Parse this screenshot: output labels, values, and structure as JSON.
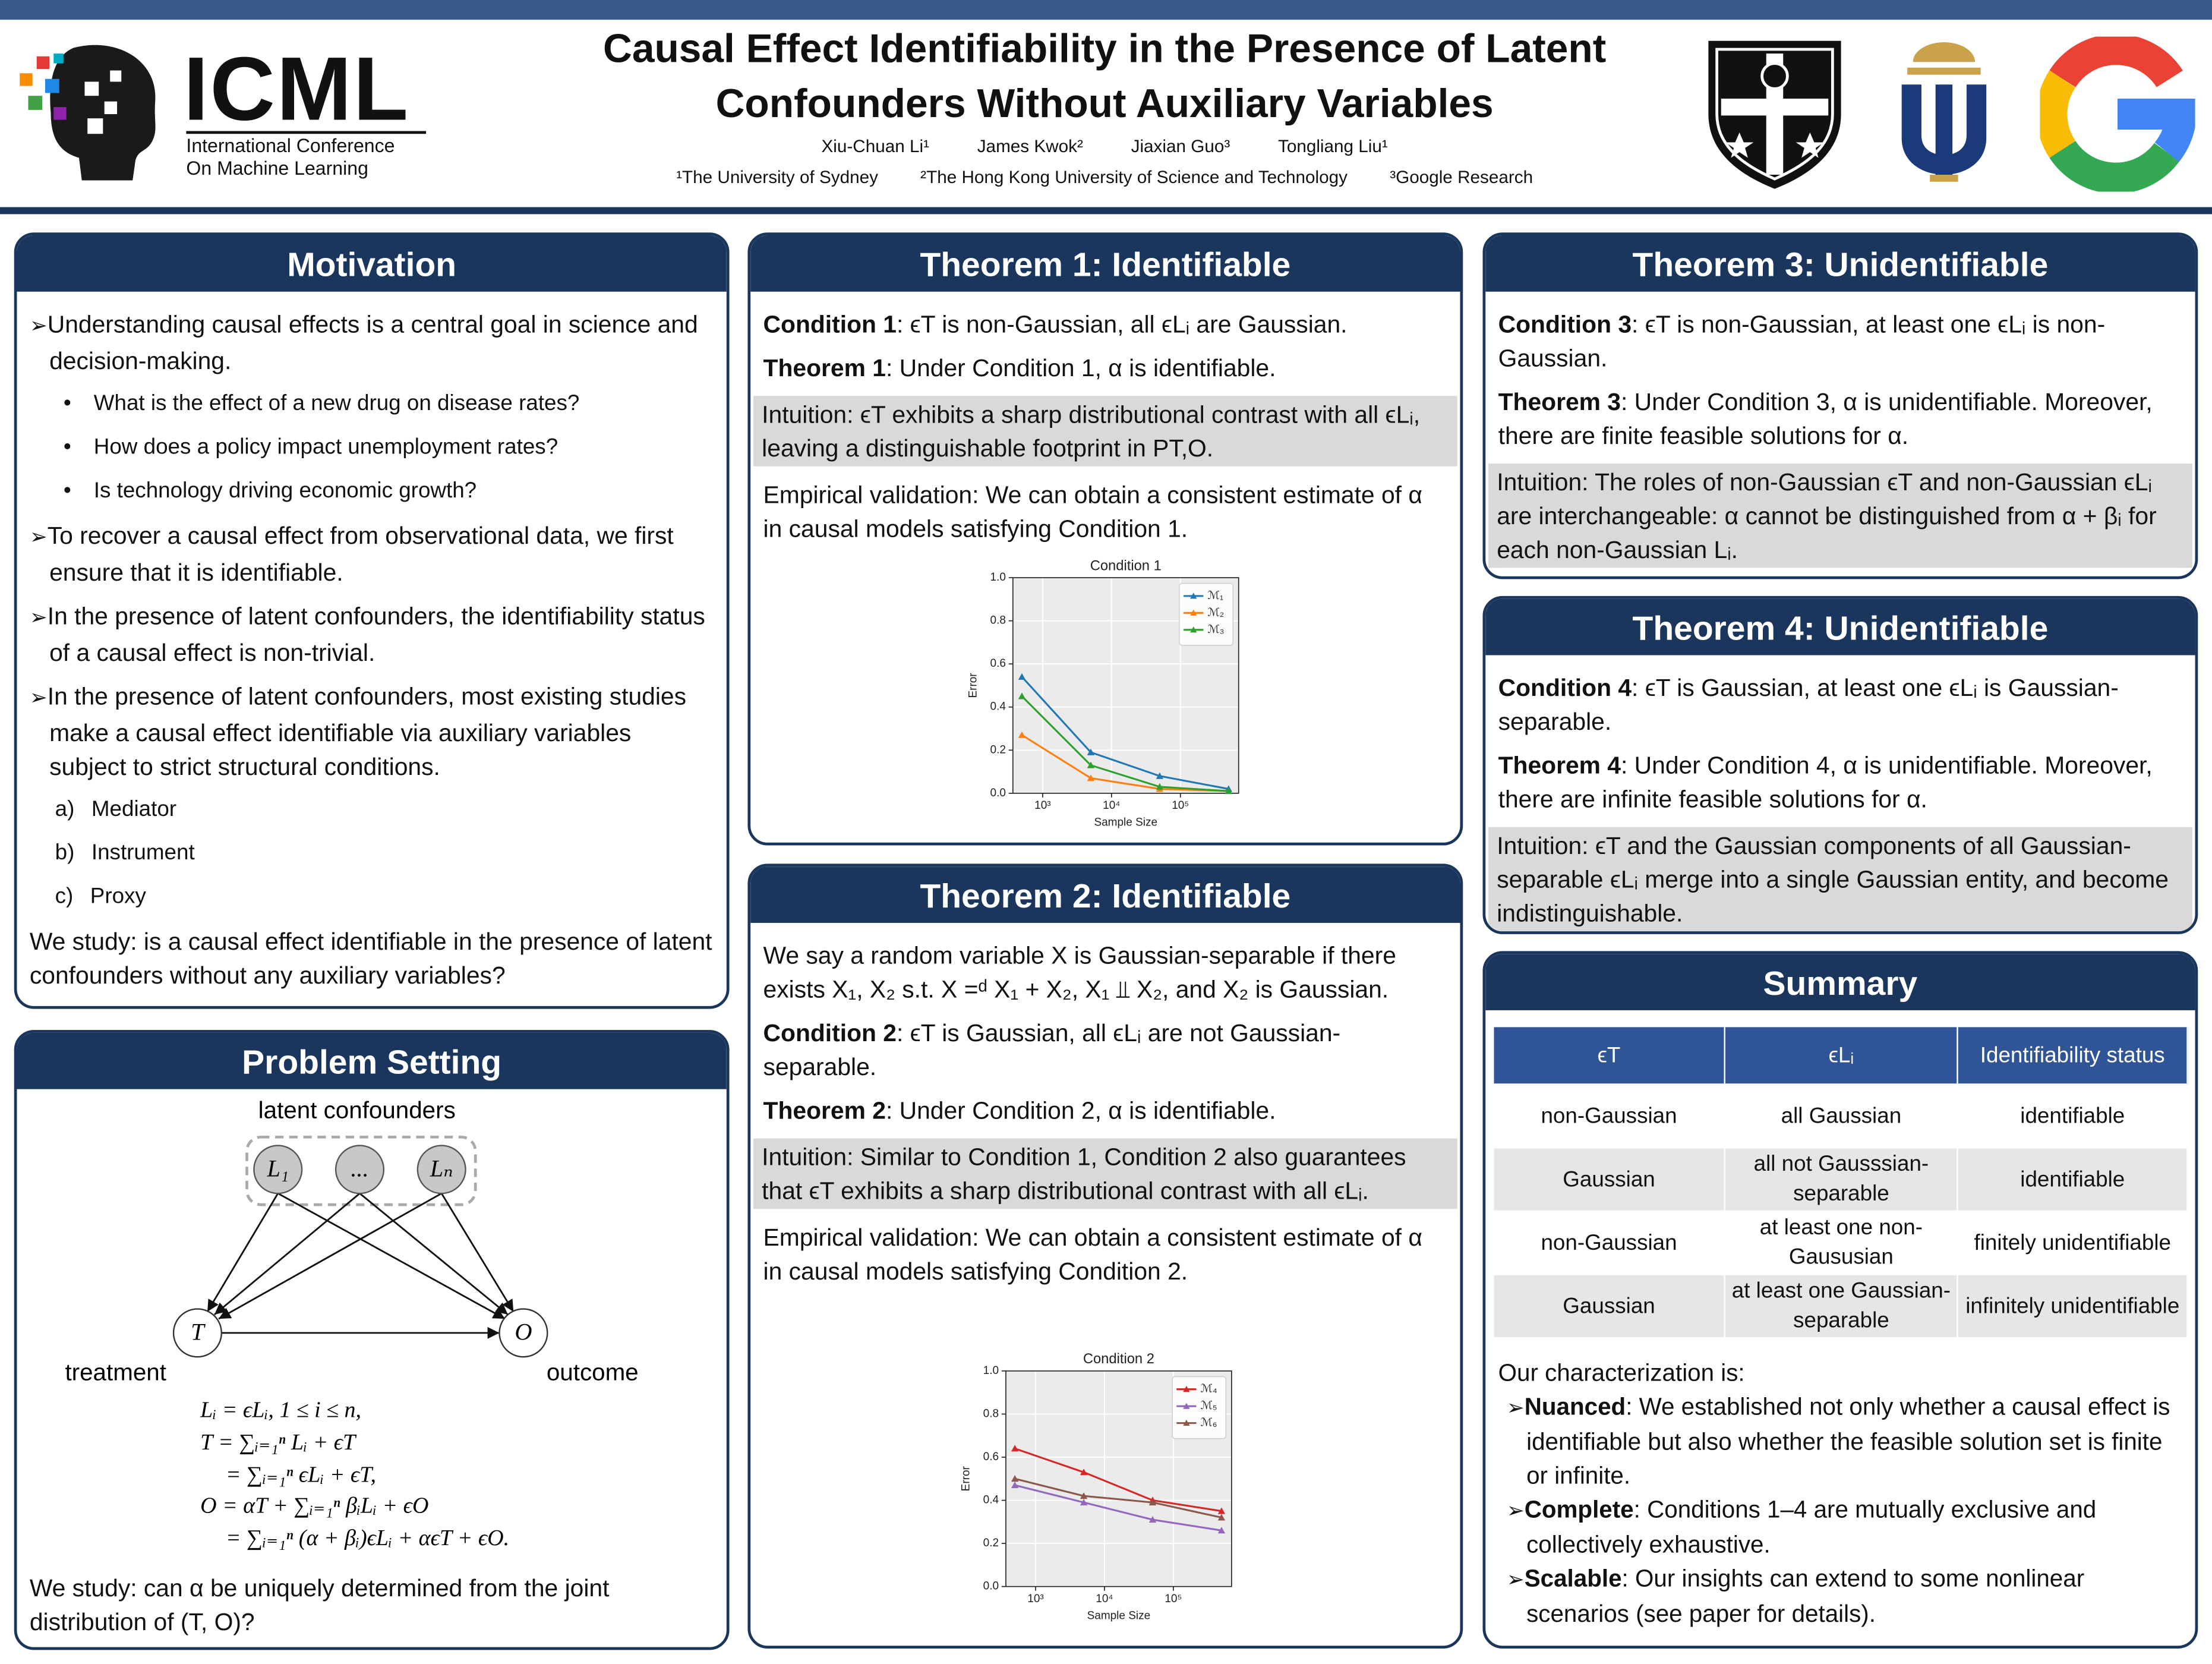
{
  "header": {
    "title": "Causal Effect Identifiability in the Presence of Latent Confounders Without Auxiliary Variables",
    "authors": [
      "Xiu-Chuan Li¹",
      "James Kwok²",
      "Jiaxian Guo³",
      "Tongliang Liu¹"
    ],
    "affiliations": [
      "¹The University of Sydney",
      "²The Hong Kong University of Science and Technology",
      "³Google Research"
    ],
    "conference": {
      "name": "ICML",
      "line1": "International Conference",
      "line2": "On Machine Learning"
    }
  },
  "motivation": {
    "title": "Motivation",
    "p1": "Understanding causal effects is a central goal in science and decision-making.",
    "questions": [
      "What is the effect of a new drug on disease rates?",
      "How does a policy impact unemployment rates?",
      "Is technology driving economic growth?"
    ],
    "p2": "To recover a causal effect from observational data, we first ensure that it is identifiable.",
    "p3": "In the presence of latent confounders, the identifiability status of a causal effect is non-trivial.",
    "p4": "In the presence of latent confounders, most existing studies make a causal effect identifiable via auxiliary variables subject to strict structural conditions.",
    "auxiliary": [
      {
        "marker": "a)",
        "text": "Mediator"
      },
      {
        "marker": "b)",
        "text": "Instrument"
      },
      {
        "marker": "c)",
        "text": "Proxy"
      }
    ],
    "study": "We study: is a causal effect identifiable in the presence of latent confounders without any auxiliary variables?"
  },
  "problem": {
    "title": "Problem Setting",
    "latent_label": "latent confounders",
    "treatment_label": "treatment",
    "outcome_label": "outcome",
    "nodes": {
      "l1": "L₁",
      "dots": "...",
      "ln": "Lₙ",
      "t": "T",
      "o": "O"
    },
    "equations": [
      "Lᵢ = ϵLᵢ,  1 ≤ i ≤ n,",
      "T = ∑ᵢ₌₁ⁿ Lᵢ + ϵT",
      "= ∑ᵢ₌₁ⁿ ϵLᵢ + ϵT,",
      "O = αT + ∑ᵢ₌₁ⁿ βᵢLᵢ + ϵO",
      "= ∑ᵢ₌₁ⁿ (α + βᵢ)ϵLᵢ + αϵT + ϵO."
    ],
    "study": "We study: can α be uniquely determined from the joint distribution of (T, O)?"
  },
  "theorem1": {
    "title": "Theorem 1: Identifiable",
    "condition": {
      "lead": "Condition 1",
      "text": ": ϵT is non-Gaussian, all ϵLᵢ are Gaussian."
    },
    "theorem": {
      "lead": "Theorem 1",
      "text": ": Under Condition 1, α is identifiable."
    },
    "intuition": "Intuition: ϵT exhibits a sharp distributional contrast with all ϵLᵢ, leaving a distinguishable footprint in PT,O.",
    "empirical": "Empirical validation: We can obtain a consistent estimate of α in causal models satisfying Condition 1."
  },
  "theorem2": {
    "title": "Theorem 2: Identifiable",
    "definition": "We say a random variable X is Gaussian-separable if there exists X₁, X₂ s.t. X =ᵈ X₁ + X₂, X₁ ⫫ X₂, and X₂ is Gaussian.",
    "condition": {
      "lead": "Condition 2",
      "text": ": ϵT is Gaussian, all ϵLᵢ are not Gaussian-separable."
    },
    "theorem": {
      "lead": "Theorem 2",
      "text": ": Under Condition 2, α is identifiable."
    },
    "intuition": "Intuition: Similar to Condition 1, Condition 2 also guarantees that ϵT exhibits a sharp distributional contrast with all ϵLᵢ.",
    "empirical": "Empirical validation: We can obtain a consistent estimate of α in causal models satisfying Condition 2."
  },
  "theorem3": {
    "title": "Theorem 3: Unidentifiable",
    "condition": {
      "lead": "Condition 3",
      "text": ": ϵT is non-Gaussian, at least one ϵLᵢ is non-Gaussian."
    },
    "theorem": {
      "lead": "Theorem 3",
      "text": ": Under Condition 3, α is unidentifiable. Moreover, there are finite feasible solutions for α."
    },
    "intuition": "Intuition: The roles of non-Gaussian ϵT and non-Gaussian ϵLᵢ are interchangeable: α cannot be distinguished from α + βᵢ for each non-Gaussian Lᵢ."
  },
  "theorem4": {
    "title": "Theorem 4: Unidentifiable",
    "condition": {
      "lead": "Condition 4",
      "text": ": ϵT is Gaussian, at least one ϵLᵢ is Gaussian-separable."
    },
    "theorem": {
      "lead": "Theorem 4",
      "text": ": Under Condition 4, α is unidentifiable. Moreover, there are infinite feasible solutions for α."
    },
    "intuition": "Intuition: ϵT and the Gaussian components of all Gaussian-separable ϵLᵢ merge into a single Gaussian entity, and become indistinguishable."
  },
  "summary": {
    "title": "Summary",
    "table": {
      "header": [
        "ϵT",
        "ϵLᵢ",
        "Identifiability status"
      ],
      "rows": [
        [
          "non-Gaussian",
          "all Gaussian",
          "identifiable"
        ],
        [
          "Gaussian",
          "all not Gausssian-separable",
          "identifiable"
        ],
        [
          "non-Gaussian",
          "at least one non-Gaususian",
          "finitely unidentifiable"
        ],
        [
          "Gaussian",
          "at least one Gaussian-separable",
          "infinitely unidentifiable"
        ]
      ]
    },
    "intro": "Our characterization is:",
    "points": [
      {
        "lead": "Nuanced",
        "text": ": We established not only whether a causal effect is identifiable but also whether the feasible solution set is finite or infinite."
      },
      {
        "lead": "Complete",
        "text": ": Conditions 1–4 are mutually exclusive and collectively exhaustive."
      },
      {
        "lead": "Scalable",
        "text": ": Our insights can extend to some nonlinear scenarios (see paper for details)."
      }
    ]
  },
  "chart_data": [
    {
      "type": "line",
      "title": "Condition 1",
      "x_label": "Sample Size",
      "y_label": "Error",
      "x": [
        500,
        5000,
        50000,
        500000
      ],
      "xscale": "log",
      "xlim": [
        370,
        700000
      ],
      "xticks": [
        {
          "value": 1000,
          "label": "10³"
        },
        {
          "value": 10000,
          "label": "10⁴"
        },
        {
          "value": 100000,
          "label": "10⁵"
        }
      ],
      "ylim": [
        0,
        1
      ],
      "yticks": [
        {
          "value": 0,
          "label": "0.0"
        },
        {
          "value": 0.2,
          "label": "0.2"
        },
        {
          "value": 0.4,
          "label": "0.4"
        },
        {
          "value": 0.6,
          "label": "0.6"
        },
        {
          "value": 0.8,
          "label": "0.8"
        },
        {
          "value": 1,
          "label": "1.0"
        }
      ],
      "grid": true,
      "legend": "upper right",
      "series": [
        {
          "name": "ℳ₁",
          "color": "#1f77b4",
          "values": [
            0.54,
            0.19,
            0.08,
            0.02
          ]
        },
        {
          "name": "ℳ₂",
          "color": "#ff7f0e",
          "values": [
            0.27,
            0.07,
            0.02,
            0.01
          ]
        },
        {
          "name": "ℳ₃",
          "color": "#2ca02c",
          "values": [
            0.45,
            0.13,
            0.03,
            0.01
          ]
        }
      ]
    },
    {
      "type": "line",
      "title": "Condition 2",
      "x_label": "Sample Size",
      "y_label": "Error",
      "x": [
        500,
        5000,
        50000,
        500000
      ],
      "xscale": "log",
      "xlim": [
        370,
        700000
      ],
      "xticks": [
        {
          "value": 1000,
          "label": "10³"
        },
        {
          "value": 10000,
          "label": "10⁴"
        },
        {
          "value": 100000,
          "label": "10⁵"
        }
      ],
      "ylim": [
        0,
        1
      ],
      "yticks": [
        {
          "value": 0,
          "label": "0.0"
        },
        {
          "value": 0.2,
          "label": "0.2"
        },
        {
          "value": 0.4,
          "label": "0.4"
        },
        {
          "value": 0.6,
          "label": "0.6"
        },
        {
          "value": 0.8,
          "label": "0.8"
        },
        {
          "value": 1,
          "label": "1.0"
        }
      ],
      "grid": true,
      "legend": "upper right",
      "series": [
        {
          "name": "ℳ₄",
          "color": "#d62728",
          "values": [
            0.64,
            0.53,
            0.4,
            0.35
          ]
        },
        {
          "name": "ℳ₅",
          "color": "#9467bd",
          "values": [
            0.47,
            0.39,
            0.31,
            0.26
          ]
        },
        {
          "name": "ℳ₆",
          "color": "#8c564b",
          "values": [
            0.5,
            0.42,
            0.39,
            0.32
          ]
        }
      ]
    }
  ]
}
